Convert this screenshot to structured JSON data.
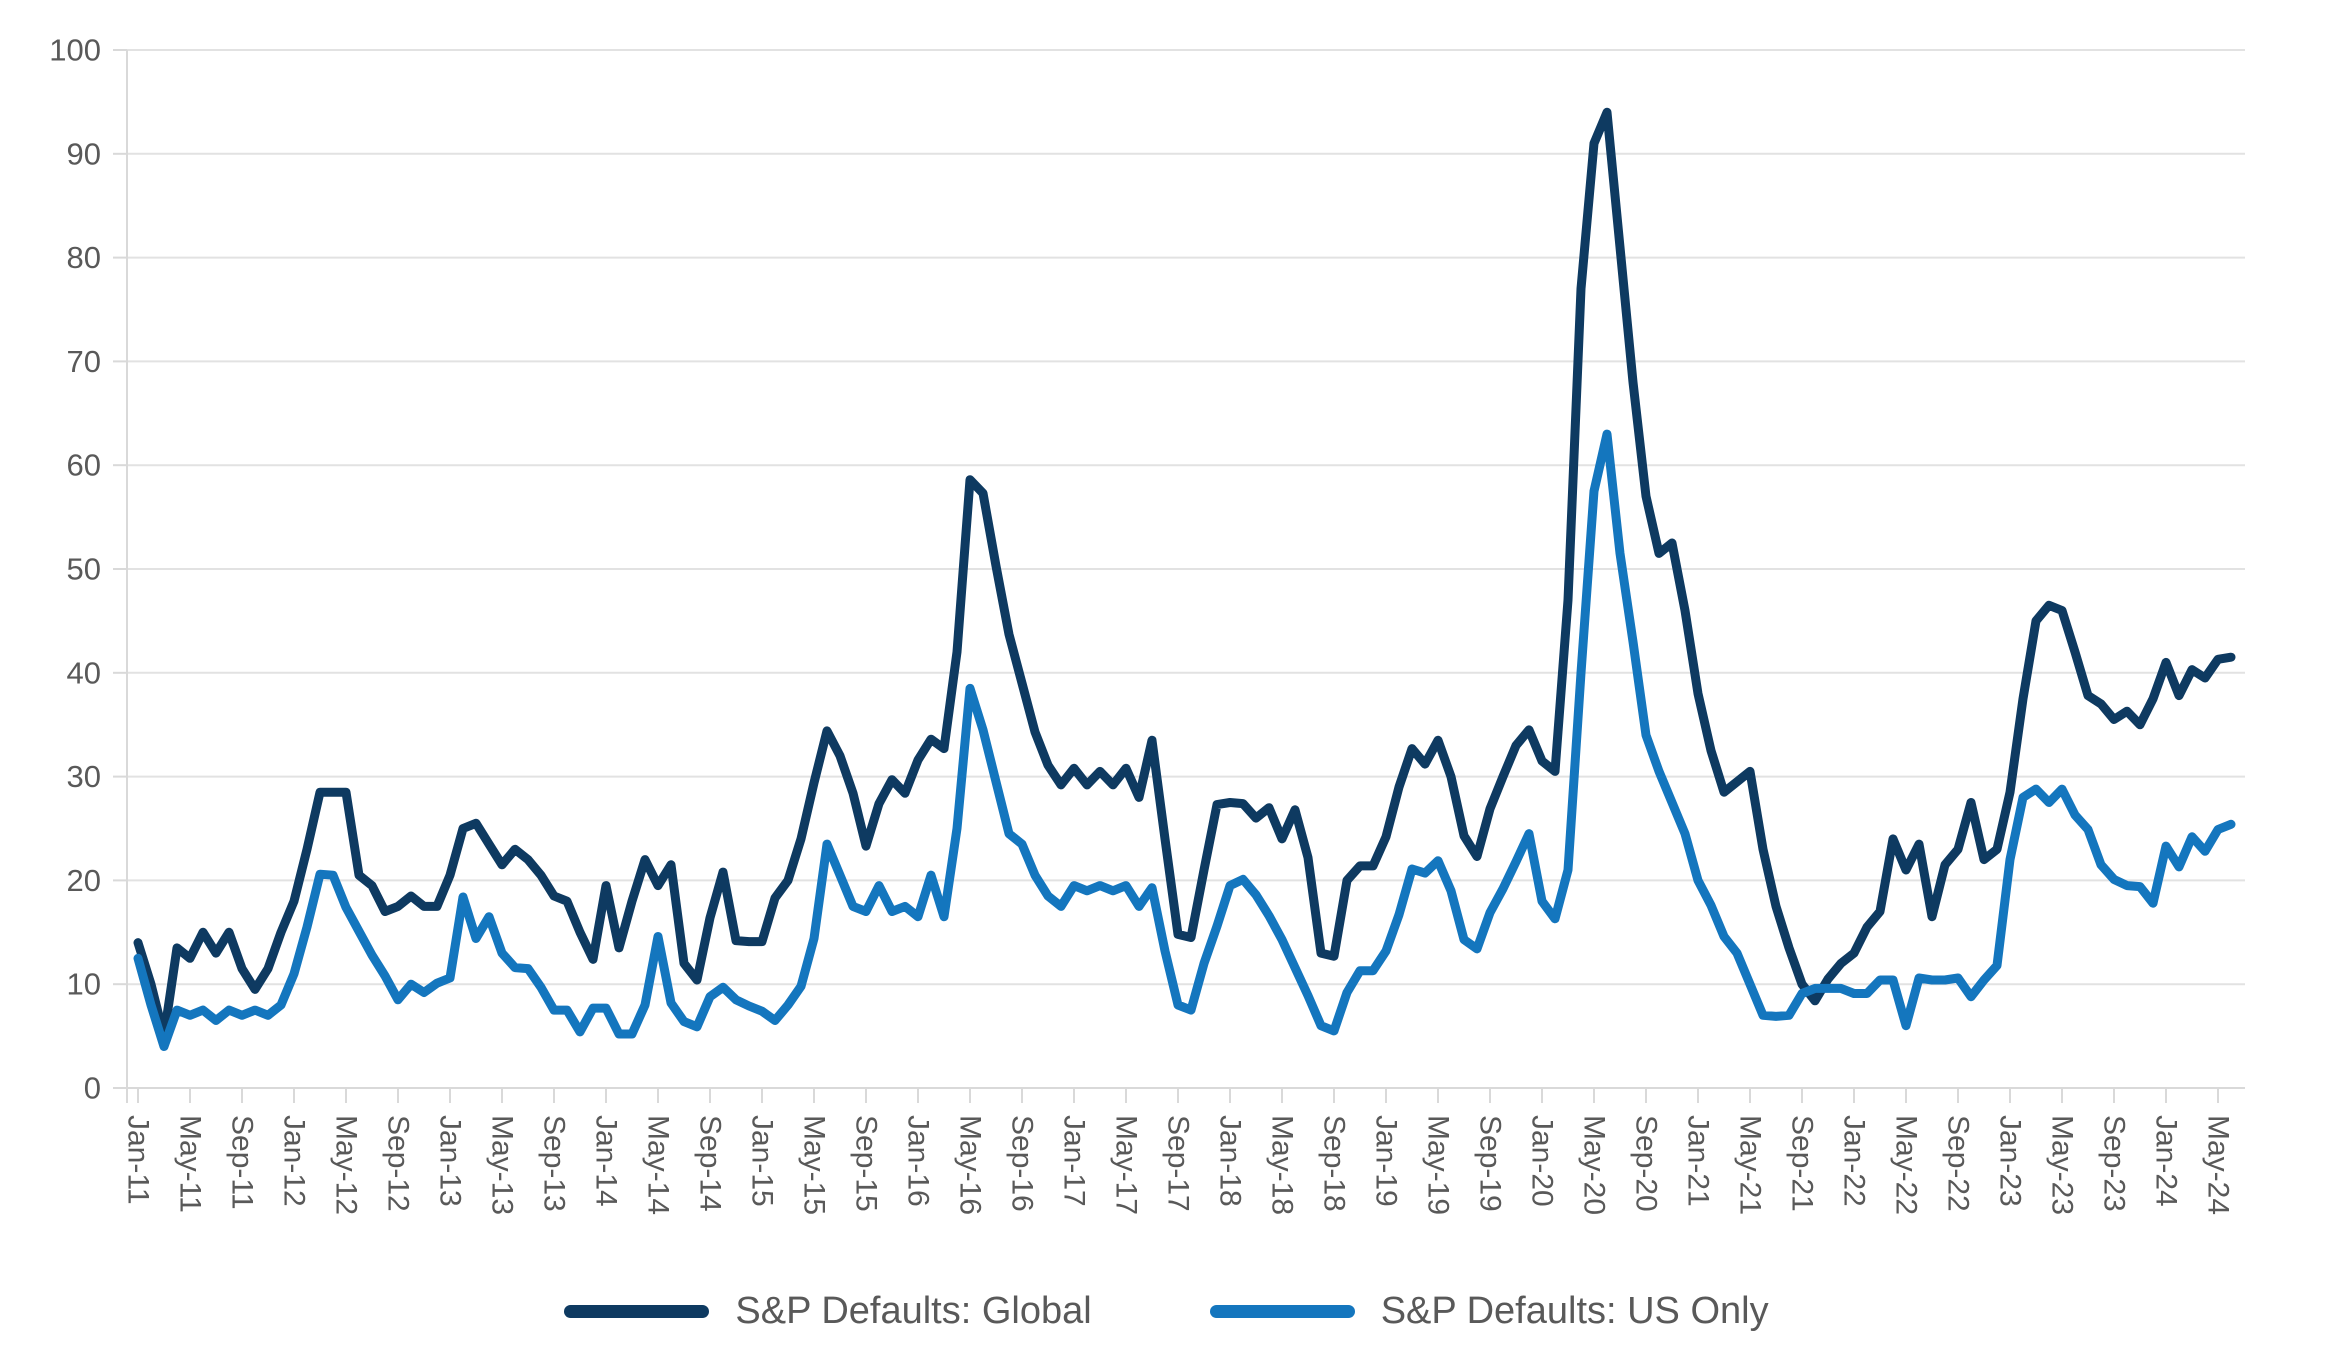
{
  "page": {
    "background": "#ffffff"
  },
  "chart_data": {
    "type": "line",
    "title": "",
    "frequency": "monthly",
    "x_start": "Jan-11",
    "x_end": "Jun-24",
    "grid": "horizontal",
    "legend_position": "bottom",
    "colors": {
      "gridline": "#e2e2e2",
      "axis": "#d9d9d9",
      "tick_text": "#595959"
    },
    "x_axis": {
      "tick_interval_months": 4,
      "tick_labels": [
        "Jan-11",
        "May-11",
        "Sep-11",
        "Jan-12",
        "May-12",
        "Sep-12",
        "Jan-13",
        "May-13",
        "Sep-13",
        "Jan-14",
        "May-14",
        "Sep-14",
        "Jan-15",
        "May-15",
        "Sep-15",
        "Jan-16",
        "May-16",
        "Sep-16",
        "Jan-17",
        "May-17",
        "Sep-17",
        "Jan-18",
        "May-18",
        "Sep-18",
        "Jan-19",
        "May-19",
        "Sep-19",
        "Jan-20",
        "May-20",
        "Sep-20",
        "Jan-21",
        "May-21",
        "Sep-21",
        "Jan-22",
        "May-22",
        "Sep-22",
        "Jan-23",
        "May-23",
        "Sep-23",
        "Jan-24",
        "May-24"
      ]
    },
    "y_axis": {
      "min": 0,
      "max": 100,
      "step": 10,
      "tick_labels": [
        "0",
        "10",
        "20",
        "30",
        "40",
        "50",
        "60",
        "70",
        "80",
        "90",
        "100"
      ]
    },
    "series": [
      {
        "name": "S&P Defaults: Global",
        "color": "#0E3A61",
        "values": [
          14,
          10,
          5,
          13.5,
          12.5,
          15,
          13,
          15,
          11.5,
          9.5,
          11.5,
          15,
          18,
          23,
          28.5,
          28.5,
          28.5,
          20.5,
          19.5,
          17,
          17.5,
          18.5,
          17.5,
          17.5,
          20.5,
          25,
          25.5,
          23.5,
          21.5,
          23,
          22,
          20.5,
          18.5,
          18,
          15,
          12.4,
          19.5,
          13.5,
          18,
          22,
          19.5,
          21.5,
          12,
          10.4,
          16.4,
          20.8,
          14.2,
          14.1,
          14.1,
          18.3,
          20,
          24,
          29.4,
          34.4,
          32,
          28.4,
          23.3,
          27.4,
          29.7,
          28.4,
          31.6,
          33.6,
          32.7,
          42,
          58.6,
          57.3,
          50.3,
          43.7,
          39,
          34.3,
          31.1,
          29.2,
          30.8,
          29.2,
          30.5,
          29.2,
          30.8,
          28,
          33.5,
          24,
          14.8,
          14.5,
          21,
          27.3,
          27.5,
          27.4,
          26,
          27,
          24,
          26.8,
          22.2,
          13,
          12.7,
          20,
          21.4,
          21.4,
          24.2,
          29,
          32.7,
          31.2,
          33.5,
          30,
          24.3,
          22.3,
          26.9,
          30,
          33,
          34.5,
          31.5,
          30.5,
          47,
          77,
          91,
          94,
          81,
          68,
          57,
          51.5,
          52.5,
          46,
          38,
          32.5,
          28.5,
          29.5,
          30.5,
          23,
          17.5,
          13.5,
          10,
          8.4,
          10.5,
          12,
          13,
          15.5,
          17,
          24,
          21,
          23.5,
          16.5,
          21.5,
          23,
          27.5,
          22,
          23,
          28.5,
          37.5,
          45,
          46.5,
          46,
          42,
          37.8,
          37,
          35.5,
          36.3,
          35,
          37.5,
          41,
          37.8,
          40.3,
          39.5,
          41.3,
          41.5
        ]
      },
      {
        "name": "S&P Defaults: US Only",
        "color": "#1476BE",
        "values": [
          12.5,
          8,
          4,
          7.5,
          7,
          7.5,
          6.5,
          7.5,
          7,
          7.5,
          7,
          8,
          11,
          15.5,
          20.6,
          20.5,
          17.4,
          15.1,
          12.8,
          10.8,
          8.5,
          10,
          9.2,
          10.1,
          10.6,
          18.4,
          14.4,
          16.5,
          13,
          11.6,
          11.5,
          9.7,
          7.5,
          7.5,
          5.4,
          7.7,
          7.7,
          5.2,
          5.2,
          8,
          14.6,
          8.2,
          6.4,
          5.9,
          8.8,
          9.7,
          8.5,
          7.9,
          7.4,
          6.5,
          8,
          9.8,
          14.4,
          23.5,
          20.5,
          17.5,
          17,
          19.5,
          17,
          17.5,
          16.5,
          20.5,
          16.5,
          25,
          38.5,
          34.5,
          29.5,
          24.5,
          23.5,
          20.5,
          18.5,
          17.5,
          19.5,
          19,
          19.5,
          19,
          19.5,
          17.5,
          19.3,
          13.2,
          8,
          7.5,
          12,
          15.6,
          19.5,
          20.1,
          18.6,
          16.6,
          14.3,
          11.6,
          8.9,
          6,
          5.5,
          9.2,
          11.3,
          11.3,
          13.2,
          16.7,
          21.1,
          20.7,
          21.9,
          19,
          14.3,
          13.4,
          16.9,
          19.2,
          21.8,
          24.5,
          18,
          16.3,
          21,
          40,
          57.5,
          63,
          51.5,
          43,
          34,
          30.5,
          27.5,
          24.5,
          20,
          17.6,
          14.6,
          13,
          10,
          7,
          6.9,
          7,
          9.1,
          9.6,
          9.6,
          9.6,
          9.1,
          9.1,
          10.4,
          10.4,
          6,
          10.6,
          10.4,
          10.4,
          10.6,
          8.8,
          10.4,
          11.8,
          22,
          28,
          28.8,
          27.5,
          28.8,
          26.3,
          24.9,
          21.5,
          20.1,
          19.5,
          19.4,
          17.8,
          23.3,
          21.3,
          24.2,
          22.8,
          24.9,
          25.4
        ]
      }
    ]
  }
}
